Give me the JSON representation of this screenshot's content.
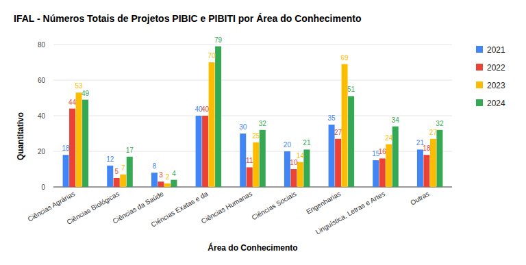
{
  "chart_data": {
    "type": "bar",
    "title": "IFAL - Números Totais de Projetos PIBIC e PIBITI por Área do Conhecimento",
    "x_label": "Área do Conhecimento",
    "y_label": "Quantitativo",
    "categories": [
      "Ciências Agrárias",
      "Ciências Biológicas",
      "Ciências da Saúde",
      "Ciências Exatas e da",
      "Ciências Humanas",
      "Ciências Sociais",
      "Engenharias",
      "Linguística, Letras e Artes",
      "Outras"
    ],
    "series": [
      {
        "name": "2021",
        "color": "#4285f4",
        "values": [
          18,
          12,
          8,
          40,
          30,
          20,
          35,
          15,
          21
        ]
      },
      {
        "name": "2022",
        "color": "#ea4335",
        "values": [
          44,
          5,
          3,
          40,
          11,
          10,
          27,
          16,
          18
        ]
      },
      {
        "name": "2023",
        "color": "#fbbc04",
        "values": [
          53,
          7,
          2,
          70,
          25,
          14,
          69,
          24,
          27
        ]
      },
      {
        "name": "2024",
        "color": "#34a853",
        "values": [
          49,
          17,
          4,
          79,
          32,
          21,
          51,
          34,
          32
        ]
      }
    ],
    "ylim": [
      0,
      80
    ],
    "yticks": [
      0,
      20,
      40,
      60,
      80
    ],
    "grid": true,
    "legend": "right",
    "data_labels": true
  }
}
